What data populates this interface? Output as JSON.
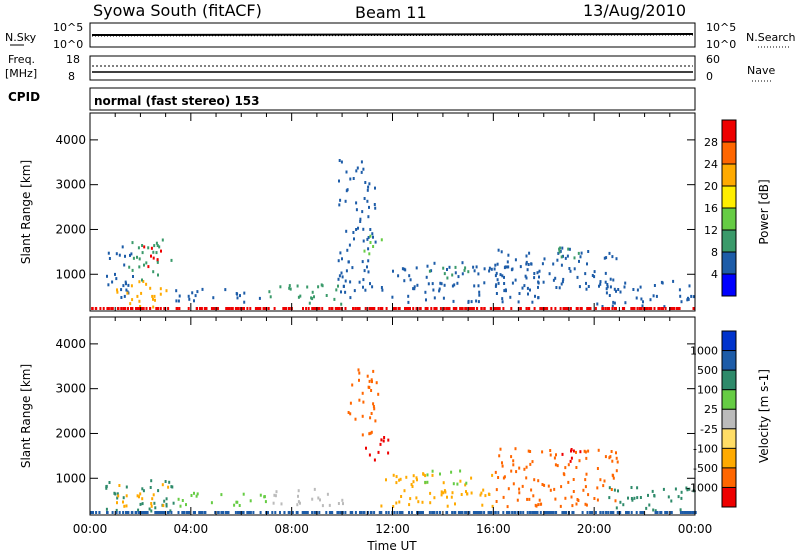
{
  "header": {
    "station": "Syowa South (fitACF)",
    "beam": "Beam 11",
    "date": "13/Aug/2010"
  },
  "status_panels": {
    "nsky_label": "N.Sky",
    "nsky_ticks": [
      "10^5",
      "10^0"
    ],
    "nsearch_label": "N.Search",
    "nsearch_ticks": [
      "10^5",
      "10^0"
    ],
    "freq_label": "Freq.",
    "freq_unit": "[MHz]",
    "freq_ticks": [
      "18",
      "8"
    ],
    "nave_label": "Nave",
    "nave_ticks": [
      "60",
      "0"
    ],
    "cpid_label": "CPID",
    "cpid_text": "normal (fast stereo) 153"
  },
  "x_axis": {
    "label": "Time UT",
    "ticks": [
      "00:00",
      "04:00",
      "08:00",
      "12:00",
      "16:00",
      "20:00",
      "00:00"
    ]
  },
  "chart_data": [
    {
      "type": "heatmap",
      "name": "power",
      "ylabel": "Slant Range [km]",
      "yticks": [
        1000,
        2000,
        3000,
        4000
      ],
      "ylim": [
        180,
        4600
      ],
      "xlim_hours": [
        0,
        24
      ],
      "colorbar_label": "Power [dB]",
      "colorbar_ticks": [
        "28",
        "24",
        "20",
        "16",
        "12",
        "8",
        "4"
      ],
      "colorbar_colors": [
        "#0000ff",
        "#1d5ca8",
        "#3a9a6a",
        "#66cc44",
        "#ffee00",
        "#ffaa00",
        "#ff6600",
        "#ee0000"
      ],
      "regions": [
        {
          "x": [
            0.5,
            1.7
          ],
          "y": [
            400,
            1650
          ],
          "color": "#1d5ca8"
        },
        {
          "x": [
            1.0,
            3.2
          ],
          "y": [
            300,
            900
          ],
          "color": "#ffaa00"
        },
        {
          "x": [
            1.5,
            3.2
          ],
          "y": [
            900,
            1800
          ],
          "color": "#3a9a6a"
        },
        {
          "x": [
            2.0,
            2.8
          ],
          "y": [
            1200,
            1700
          ],
          "color": "#ee0000"
        },
        {
          "x": [
            3.0,
            7.0
          ],
          "y": [
            400,
            700
          ],
          "color": "#1d5ca8"
        },
        {
          "x": [
            7.0,
            10.0
          ],
          "y": [
            350,
            800
          ],
          "color": "#3a9a6a"
        },
        {
          "x": [
            9.8,
            11.3
          ],
          "y": [
            500,
            3600
          ],
          "color": "#1d5ca8"
        },
        {
          "x": [
            10.8,
            11.6
          ],
          "y": [
            1450,
            1900
          ],
          "color": "#66cc44"
        },
        {
          "x": [
            11.5,
            18.0
          ],
          "y": [
            400,
            1300
          ],
          "color": "#1d5ca8"
        },
        {
          "x": [
            13.2,
            15.0
          ],
          "y": [
            900,
            1200
          ],
          "color": "#3a9a6a"
        },
        {
          "x": [
            16.0,
            21.0
          ],
          "y": [
            700,
            1650
          ],
          "color": "#1d5ca8"
        },
        {
          "x": [
            18.5,
            19.5
          ],
          "y": [
            1300,
            1700
          ],
          "color": "#3a9a6a"
        },
        {
          "x": [
            20.0,
            24.0
          ],
          "y": [
            300,
            900
          ],
          "color": "#1d5ca8"
        }
      ]
    },
    {
      "type": "heatmap",
      "name": "velocity",
      "ylabel": "Slant Range [km]",
      "yticks": [
        1000,
        2000,
        3000,
        4000
      ],
      "ylim": [
        180,
        4600
      ],
      "xlim_hours": [
        0,
        24
      ],
      "colorbar_label": "Velocity [m s-1]",
      "colorbar_ticks": [
        "1000",
        "500",
        "100",
        "25",
        "-25",
        "-100",
        "-500",
        "-1000"
      ],
      "colorbar_colors": [
        "#ee0000",
        "#ff6600",
        "#ffaa00",
        "#ffdd66",
        "#bbbbbb",
        "#66cc44",
        "#2e8a6a",
        "#1d5ca8",
        "#0033cc"
      ],
      "regions": [
        {
          "x": [
            0.5,
            3.5
          ],
          "y": [
            300,
            1000
          ],
          "color": "#2e8a6a"
        },
        {
          "x": [
            1.0,
            3.2
          ],
          "y": [
            400,
            900
          ],
          "color": "#ffaa00"
        },
        {
          "x": [
            3.0,
            7.0
          ],
          "y": [
            400,
            700
          ],
          "color": "#66cc44"
        },
        {
          "x": [
            7.0,
            10.0
          ],
          "y": [
            400,
            800
          ],
          "color": "#bbbbbb"
        },
        {
          "x": [
            10.2,
            11.4
          ],
          "y": [
            2000,
            3600
          ],
          "color": "#ff6600"
        },
        {
          "x": [
            10.8,
            11.8
          ],
          "y": [
            1400,
            2000
          ],
          "color": "#ee0000"
        },
        {
          "x": [
            11.5,
            16.0
          ],
          "y": [
            400,
            1200
          ],
          "color": "#ffaa00"
        },
        {
          "x": [
            13.0,
            15.0
          ],
          "y": [
            900,
            1200
          ],
          "color": "#66cc44"
        },
        {
          "x": [
            16.0,
            21.0
          ],
          "y": [
            400,
            1700
          ],
          "color": "#ff6600"
        },
        {
          "x": [
            18.5,
            19.5
          ],
          "y": [
            1300,
            1700
          ],
          "color": "#ee0000"
        },
        {
          "x": [
            20.5,
            24.0
          ],
          "y": [
            300,
            900
          ],
          "color": "#2e8a6a"
        }
      ]
    }
  ]
}
